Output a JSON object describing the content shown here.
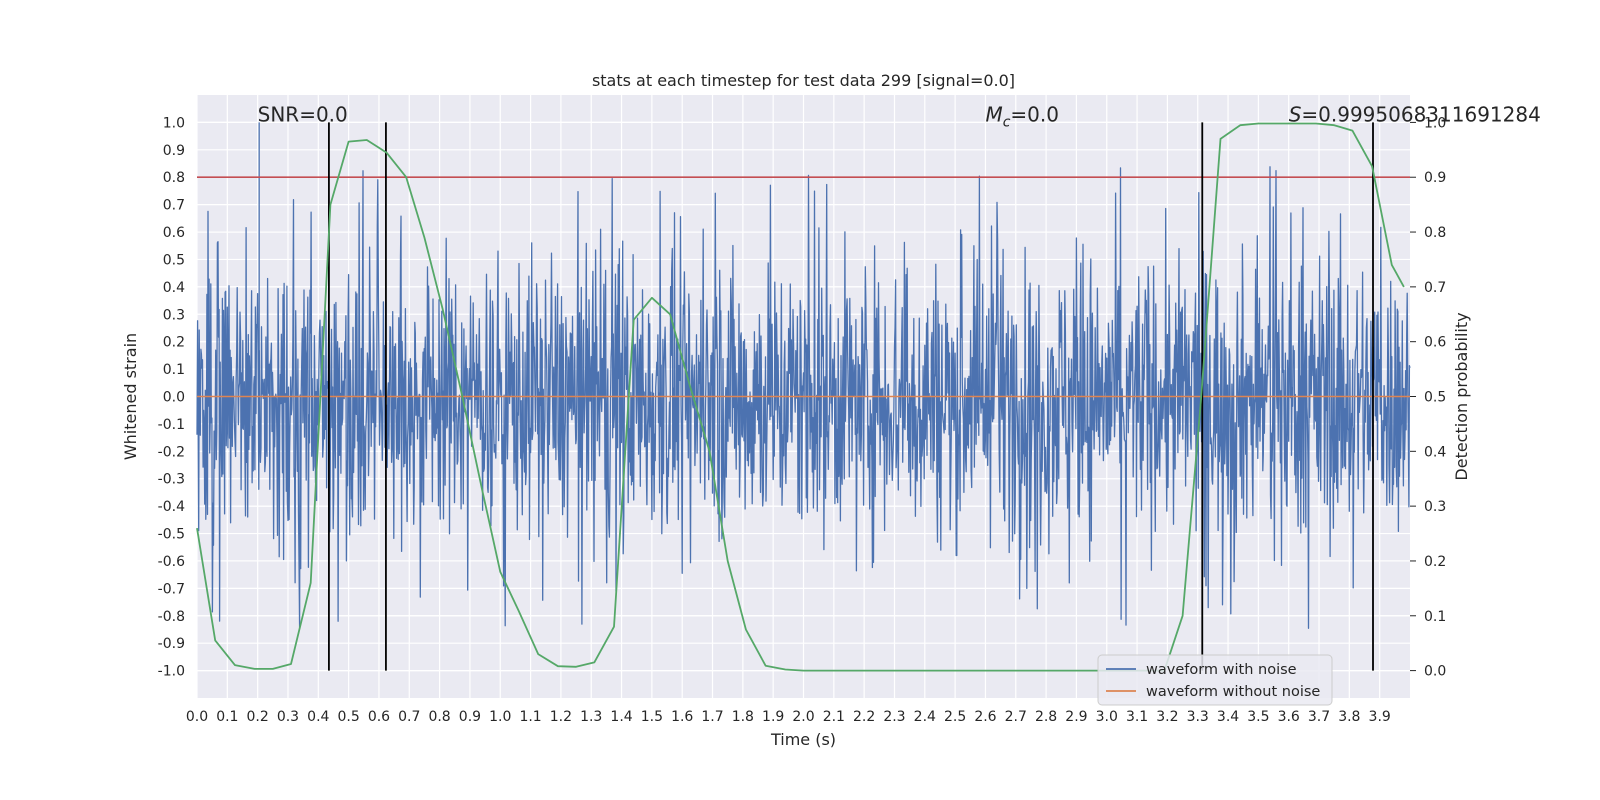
{
  "chart_data": {
    "type": "line",
    "title": "stats at each timestep for test data 299 [signal=0.0]",
    "xlabel": "Time (s)",
    "ylabel": "Whitened strain",
    "y2label": "Detection probability",
    "xlim": [
      0.0,
      4.0
    ],
    "ylim": [
      -1.1,
      1.1
    ],
    "y2lim": [
      -0.05,
      1.05
    ],
    "xticks": [
      "0.0",
      "0.1",
      "0.2",
      "0.3",
      "0.4",
      "0.5",
      "0.6",
      "0.7",
      "0.8",
      "0.9",
      "1.0",
      "1.1",
      "1.2",
      "1.3",
      "1.4",
      "1.5",
      "1.6",
      "1.7",
      "1.8",
      "1.9",
      "2.0",
      "2.1",
      "2.2",
      "2.3",
      "2.4",
      "2.5",
      "2.6",
      "2.7",
      "2.8",
      "2.9",
      "3.0",
      "3.1",
      "3.2",
      "3.3",
      "3.4",
      "3.5",
      "3.6",
      "3.7",
      "3.8",
      "3.9"
    ],
    "yticks": [
      "1.0",
      "0.9",
      "0.8",
      "0.7",
      "0.6",
      "0.5",
      "0.4",
      "0.3",
      "0.2",
      "0.1",
      "0.0",
      "-0.1",
      "-0.2",
      "-0.3",
      "-0.4",
      "-0.5",
      "-0.6",
      "-0.7",
      "-0.8",
      "-0.9",
      "-1.0"
    ],
    "y2ticks": [
      "1.0",
      "0.9",
      "0.8",
      "0.7",
      "0.6",
      "0.5",
      "0.4",
      "0.3",
      "0.2",
      "0.1",
      "0.0"
    ],
    "grid": true,
    "legend_position": "lower-right",
    "colors": {
      "noisy": "#4c72b0",
      "clean": "#dd8452",
      "prob": "#55a868",
      "threshold": "#c44e52",
      "marker": "#000000",
      "axes_bg": "#eaeaf2"
    },
    "threshold_y2": 0.9,
    "vlines_x": [
      0.435,
      0.623,
      3.315,
      3.878
    ],
    "annotations": [
      {
        "text": "SNR=0.0",
        "x": 0.2,
        "y": 1.0
      },
      {
        "text": "Mc=0.0",
        "x": 2.6,
        "y": 1.0
      },
      {
        "text": "S=0.9995068311691284",
        "x": 3.6,
        "y": 1.0
      }
    ],
    "series": [
      {
        "name": "waveform with noise",
        "type": "noise",
        "range": [
          -1.0,
          1.0
        ]
      },
      {
        "name": "waveform without noise",
        "type": "line",
        "axis": "y",
        "x": [
          0.0,
          4.0
        ],
        "y": [
          0.0,
          0.0
        ]
      },
      {
        "name": "",
        "type": "line",
        "axis": "y2",
        "x": [
          0.0,
          0.06,
          0.125,
          0.19,
          0.25,
          0.31,
          0.375,
          0.44,
          0.5,
          0.56,
          0.625,
          0.69,
          0.75,
          0.81,
          0.875,
          0.94,
          1.0,
          1.06,
          1.125,
          1.19,
          1.25,
          1.31,
          1.375,
          1.44,
          1.5,
          1.56,
          1.625,
          1.69,
          1.75,
          1.81,
          1.875,
          1.94,
          2.0,
          2.1,
          2.2,
          2.3,
          2.4,
          2.5,
          2.6,
          2.7,
          2.8,
          2.9,
          3.0,
          3.06,
          3.125,
          3.19,
          3.25,
          3.31,
          3.375,
          3.44,
          3.5,
          3.56,
          3.625,
          3.69,
          3.75,
          3.81,
          3.875,
          3.94,
          3.98
        ],
        "y": [
          0.26,
          0.055,
          0.01,
          0.003,
          0.003,
          0.012,
          0.16,
          0.85,
          0.965,
          0.968,
          0.945,
          0.9,
          0.79,
          0.66,
          0.5,
          0.33,
          0.18,
          0.11,
          0.03,
          0.008,
          0.007,
          0.015,
          0.08,
          0.64,
          0.68,
          0.65,
          0.52,
          0.4,
          0.2,
          0.075,
          0.009,
          0.002,
          0.0,
          0.0,
          0.0,
          0.0,
          0.0,
          0.0,
          0.0,
          0.0,
          0.0,
          0.0,
          0.0,
          0.0,
          0.0,
          0.0,
          0.1,
          0.49,
          0.97,
          0.995,
          0.998,
          0.998,
          0.998,
          0.998,
          0.995,
          0.985,
          0.92,
          0.74,
          0.7
        ]
      }
    ]
  }
}
